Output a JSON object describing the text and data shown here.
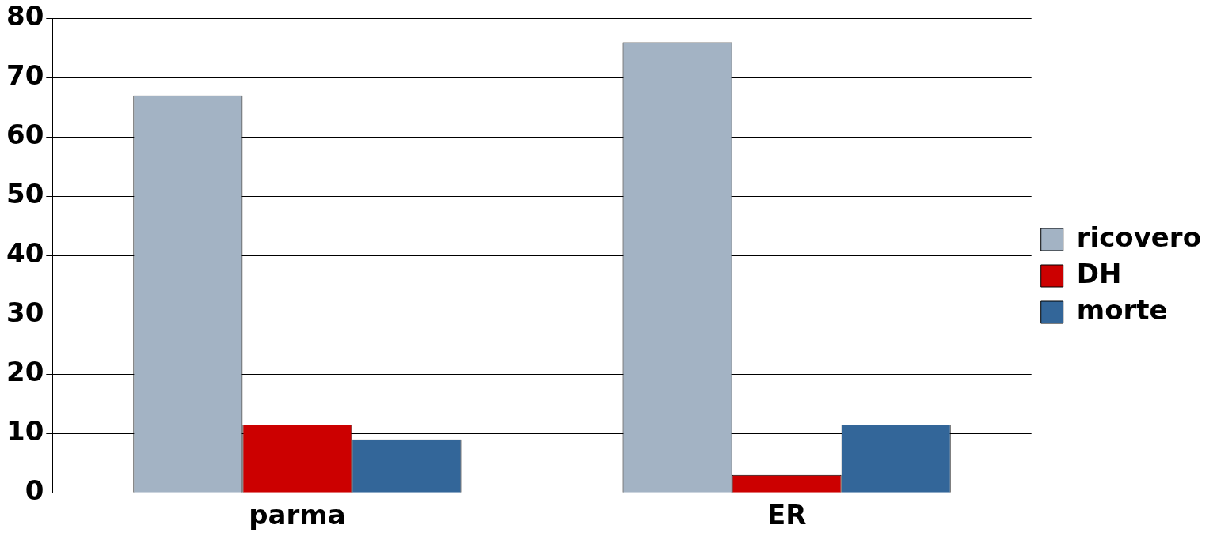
{
  "chart_data": {
    "type": "bar",
    "categories": [
      "parma",
      "ER"
    ],
    "series": [
      {
        "name": "ricovero",
        "color": "#a3b3c4",
        "values": [
          67,
          76
        ]
      },
      {
        "name": "DH",
        "color": "#cc0000",
        "values": [
          11.5,
          3
        ]
      },
      {
        "name": "morte",
        "color": "#336699",
        "values": [
          9,
          11.5
        ]
      }
    ],
    "ylim": [
      0,
      80
    ],
    "yticks": [
      0,
      10,
      20,
      30,
      40,
      50,
      60,
      70,
      80
    ],
    "grid": "y",
    "legend": "right"
  }
}
